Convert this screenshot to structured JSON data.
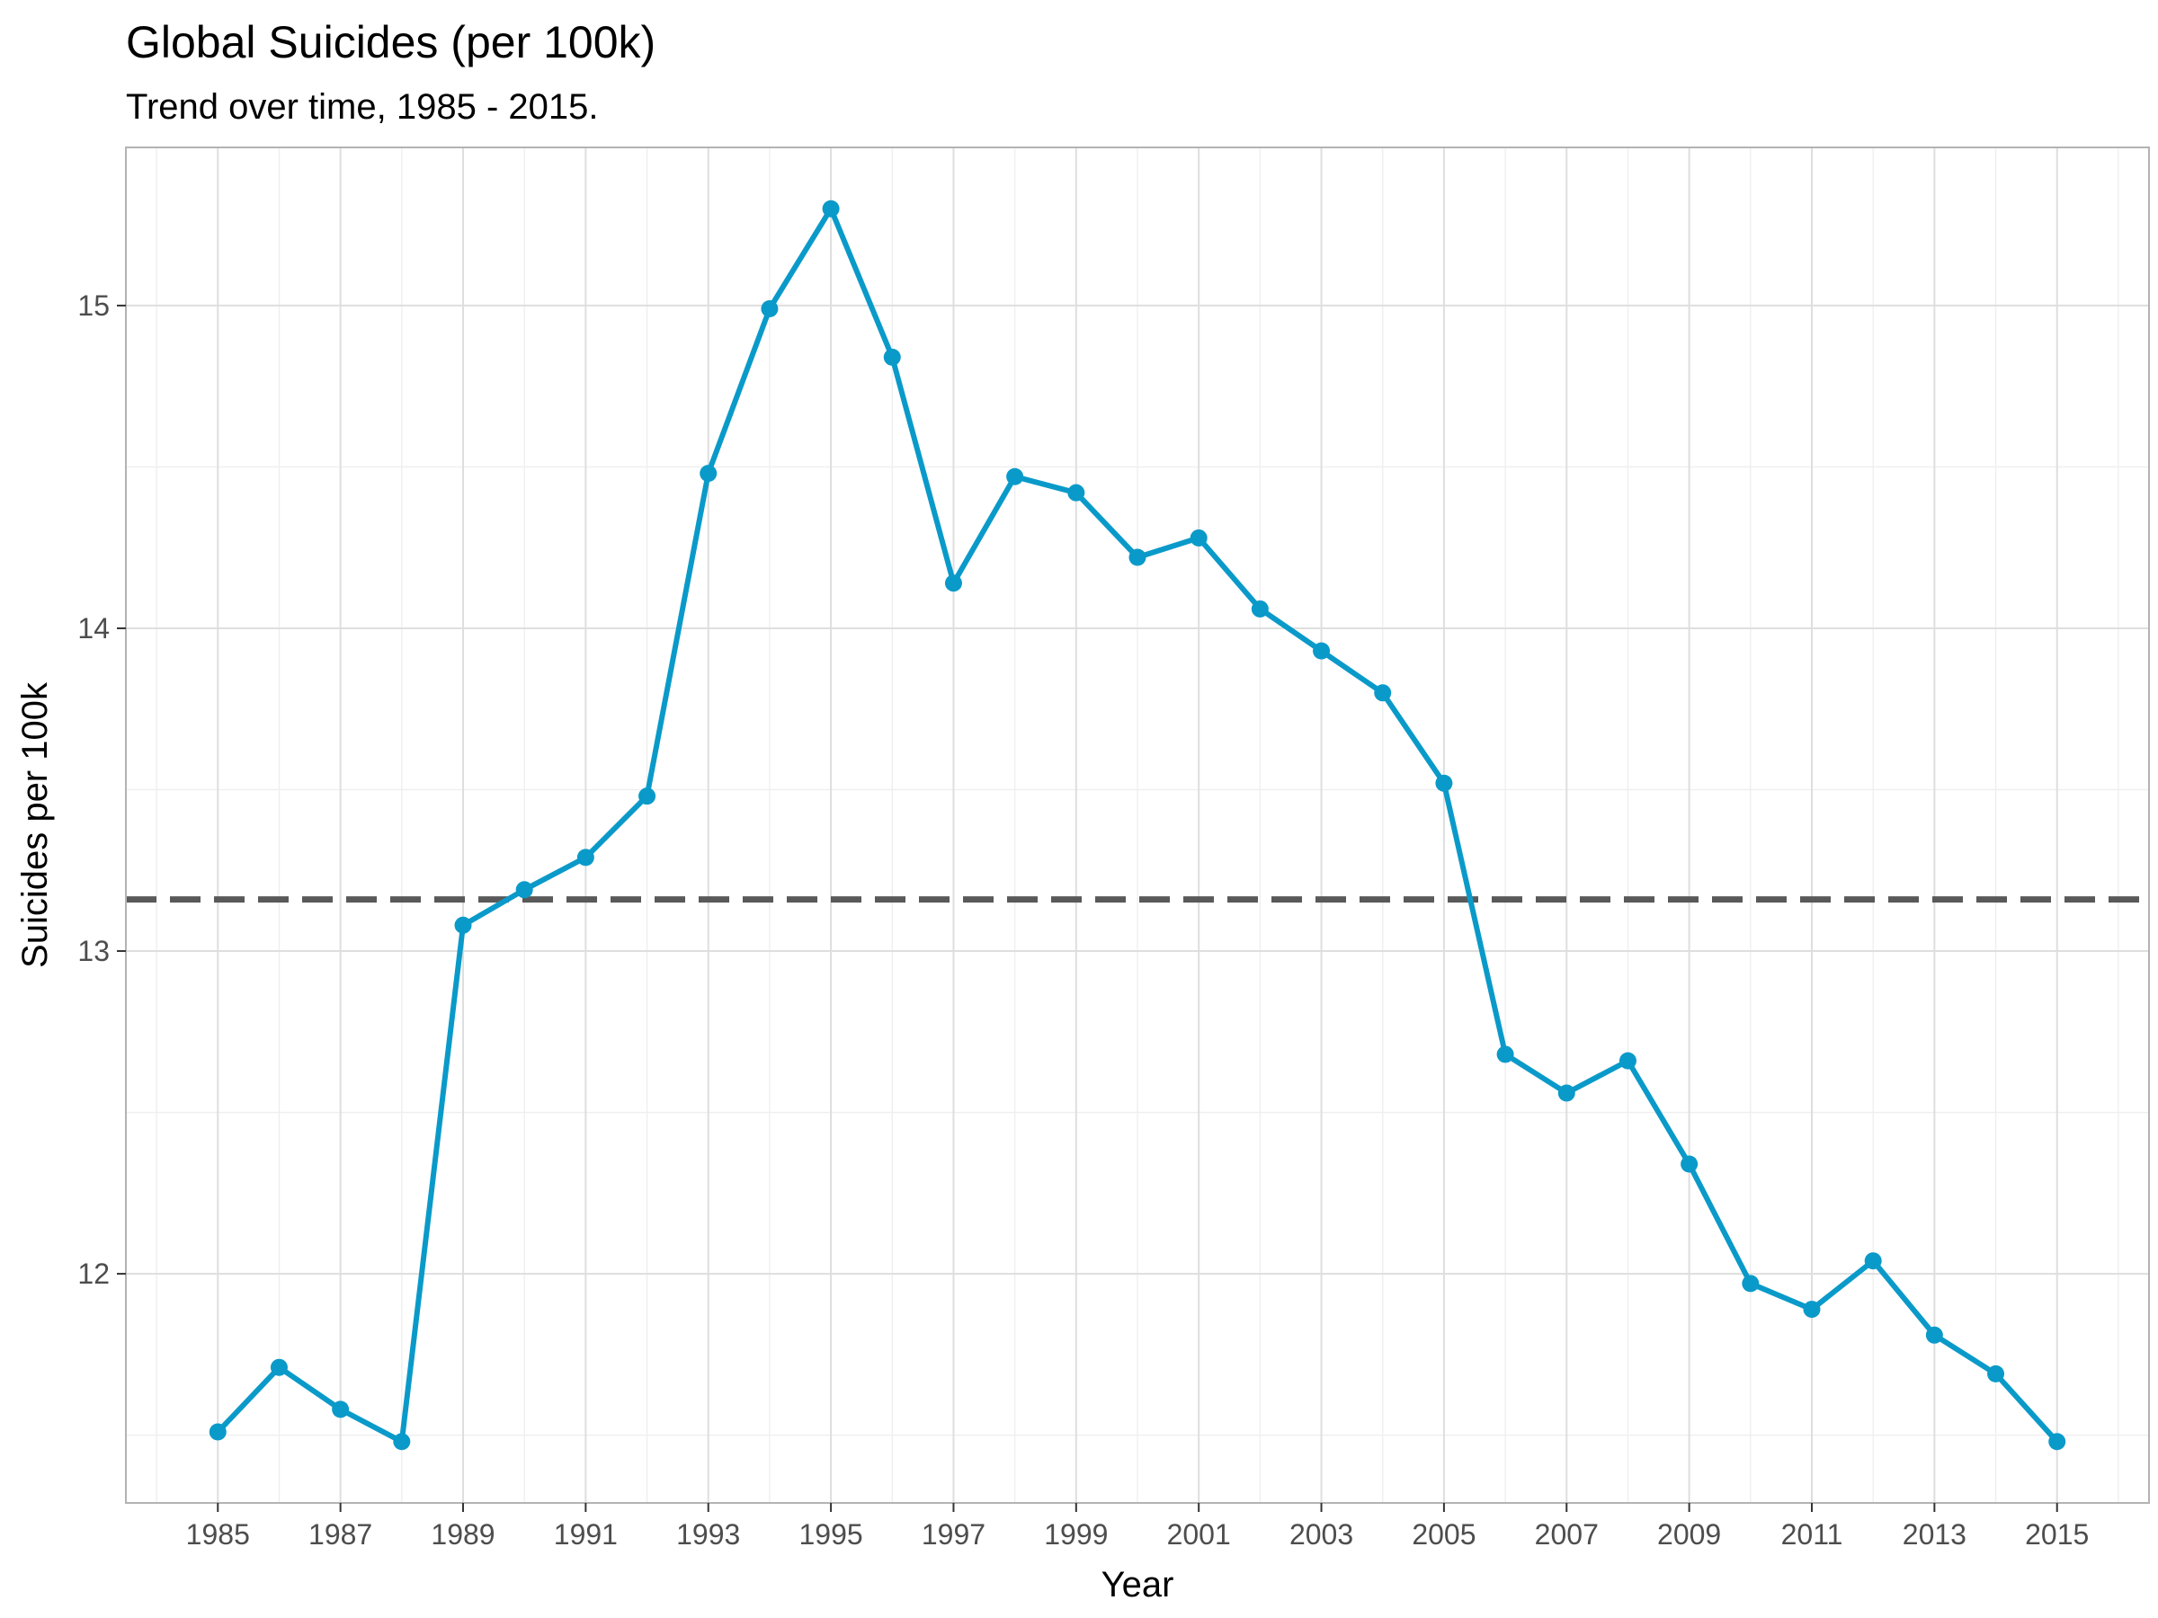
{
  "chart_data": {
    "type": "line",
    "title": "Global Suicides (per 100k)",
    "subtitle": "Trend over time, 1985 - 2015.",
    "xlabel": "Year",
    "ylabel": "Suicides per 100k",
    "xlim": [
      1983.5,
      2016.5
    ],
    "ylim": [
      11.29,
      15.49
    ],
    "x_ticks": [
      1985,
      1987,
      1989,
      1991,
      1993,
      1995,
      1997,
      1999,
      2001,
      2003,
      2005,
      2007,
      2009,
      2011,
      2013,
      2015
    ],
    "y_ticks": [
      12,
      13,
      14,
      15
    ],
    "grid": true,
    "legend": "none",
    "reference_line": {
      "y": 13.16,
      "style": "dashed",
      "color": "#595959"
    },
    "series": [
      {
        "color": "#0a9ac9",
        "x": [
          1985,
          1986,
          1987,
          1988,
          1989,
          1990,
          1991,
          1992,
          1993,
          1994,
          1995,
          1996,
          1997,
          1998,
          1999,
          2000,
          2001,
          2002,
          2003,
          2004,
          2005,
          2006,
          2007,
          2008,
          2009,
          2010,
          2011,
          2012,
          2013,
          2014,
          2015
        ],
        "values": [
          11.51,
          11.71,
          11.58,
          11.48,
          13.08,
          13.19,
          13.29,
          13.48,
          14.48,
          14.99,
          15.3,
          14.84,
          14.14,
          14.47,
          14.42,
          14.22,
          14.28,
          14.06,
          13.93,
          13.8,
          13.52,
          12.68,
          12.56,
          12.66,
          12.34,
          11.97,
          11.89,
          12.04,
          11.81,
          11.69,
          11.48
        ]
      }
    ]
  }
}
